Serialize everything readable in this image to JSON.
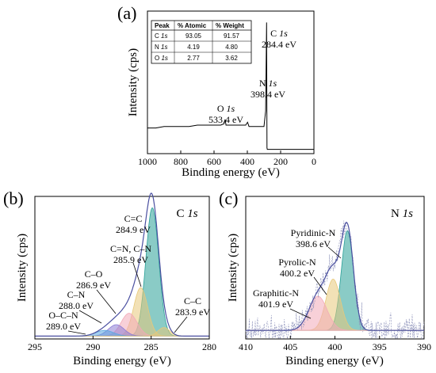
{
  "colors": {
    "axis": "#000000",
    "survey_line": "#000000",
    "envelope": "#4a4fa0",
    "fill_teal": "#2aa198",
    "fill_yellow": "#e8c97a",
    "fill_pink": "#f2a9b8",
    "fill_purple": "#8c7bd6",
    "fill_blue": "#5aa7e0"
  },
  "chart_data": [
    {
      "panel_label": "(a)",
      "type": "line",
      "xlabel": "Binding energy (eV)",
      "ylabel": "Intensity (cps)",
      "xlim": [
        1000,
        0
      ],
      "xticks": [
        1000,
        800,
        600,
        400,
        200,
        0
      ],
      "ylim": [
        0,
        100
      ],
      "series": [
        {
          "x": [
            1000,
            950,
            900,
            850,
            800,
            750,
            700,
            650,
            600,
            560,
            540,
            533.4,
            528,
            500,
            450,
            410,
            398.4,
            390,
            350,
            300,
            290,
            284.4,
            282,
            280,
            250,
            200,
            150,
            100,
            50,
            0
          ],
          "values": [
            18,
            18,
            19,
            19,
            19,
            19,
            20,
            20,
            20,
            20,
            21,
            24,
            20,
            20,
            20,
            20,
            22,
            19,
            19,
            19,
            30,
            92,
            4,
            3,
            3,
            3,
            3,
            3,
            3,
            3
          ]
        }
      ],
      "peaks": [
        {
          "element": "C",
          "orbital": "1s",
          "energy": "284.4 eV",
          "x": 284.4,
          "y": 92
        },
        {
          "element": "N",
          "orbital": "1s",
          "energy": "398.4 eV",
          "x": 398.4,
          "y": 22
        },
        {
          "element": "O",
          "orbital": "1s",
          "energy": "533.4 eV",
          "x": 533.4,
          "y": 24
        }
      ],
      "table": {
        "headers": [
          "Peak",
          "% Atomic",
          "% Weight"
        ],
        "rows": [
          {
            "peak_el": "C",
            "peak_orb": "1s",
            "atomic": "93.05",
            "weight": "91.57"
          },
          {
            "peak_el": "N",
            "peak_orb": "1s",
            "atomic": "4.19",
            "weight": "4.80"
          },
          {
            "peak_el": "O",
            "peak_orb": "1s",
            "atomic": "2.77",
            "weight": "3.62"
          }
        ]
      }
    },
    {
      "panel_label": "(b)",
      "type": "area",
      "title_element": "C",
      "title_orbital": "1s",
      "xlabel": "Binding energy (eV)",
      "ylabel": "Intensity (cps)",
      "xlim": [
        295,
        280
      ],
      "xticks": [
        295,
        290,
        285,
        280
      ],
      "ylim": [
        0,
        100
      ],
      "baseline": 2,
      "components": [
        {
          "label": "C=C",
          "center": 284.9,
          "height": 90,
          "fwhm": 1.3,
          "color": "teal"
        },
        {
          "label": "C=N, C–N",
          "center": 285.9,
          "height": 34,
          "fwhm": 1.4,
          "color": "yellow"
        },
        {
          "label": "C–O",
          "center": 286.9,
          "height": 16,
          "fwhm": 1.6,
          "color": "pink"
        },
        {
          "label": "C–N",
          "center": 288.0,
          "height": 8,
          "fwhm": 1.6,
          "color": "purple"
        },
        {
          "label": "O–C–N",
          "center": 289.0,
          "height": 4,
          "fwhm": 1.8,
          "color": "blue"
        },
        {
          "label": "C–C",
          "center": 283.9,
          "height": 6,
          "fwhm": 1.2,
          "color": "yellow"
        }
      ],
      "annotations": [
        {
          "name": "C=C",
          "energy": "284.9 eV"
        },
        {
          "name": "C=N, C–N",
          "energy": "285.9 eV"
        },
        {
          "name": "C–O",
          "energy": "286.9 eV"
        },
        {
          "name": "C–N",
          "energy": "288.0 eV"
        },
        {
          "name": "O–C–N",
          "energy": "289.0 eV"
        },
        {
          "name": "C–C",
          "energy": "283.9 eV"
        }
      ]
    },
    {
      "panel_label": "(c)",
      "type": "area",
      "title_element": "N",
      "title_orbital": "1s",
      "xlabel": "Binding energy (eV)",
      "ylabel": "Intensity (cps)",
      "xlim": [
        410,
        390
      ],
      "xticks": [
        410,
        405,
        400,
        395,
        390
      ],
      "ylim": [
        0,
        100
      ],
      "baseline": 6,
      "components": [
        {
          "label": "Pyridinic-N",
          "center": 398.6,
          "height": 70,
          "fwhm": 1.6,
          "color": "teal"
        },
        {
          "label": "Pyrolic-N",
          "center": 400.2,
          "height": 36,
          "fwhm": 1.9,
          "color": "yellow"
        },
        {
          "label": "Graphitic-N",
          "center": 401.9,
          "height": 24,
          "fwhm": 2.4,
          "color": "pink"
        }
      ],
      "annotations": [
        {
          "name": "Pyridinic-N",
          "energy": "398.6 eV"
        },
        {
          "name": "Pyrolic-N",
          "energy": "400.2 eV"
        },
        {
          "name": "Graphitic-N",
          "energy": "401.9 eV"
        }
      ]
    }
  ]
}
